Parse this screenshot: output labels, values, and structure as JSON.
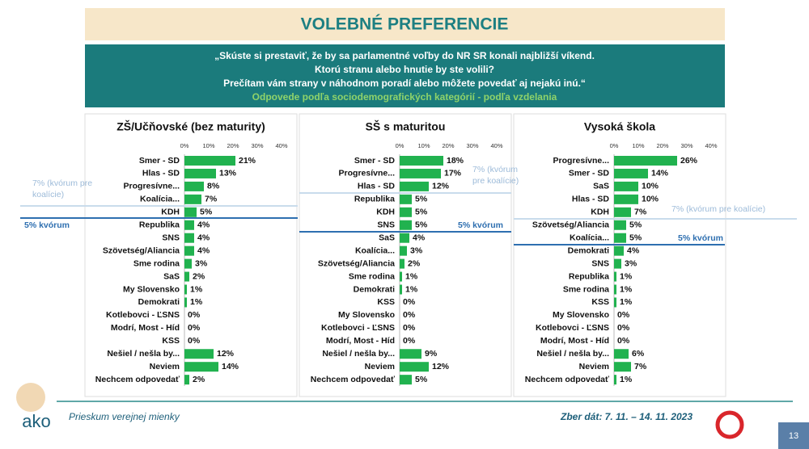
{
  "title": "VOLEBNÉ PREFERENCIE",
  "question": [
    "„Skúste si prestaviť, že by sa parlamentné voľby do NR SR konali najbližší víkend.",
    "Ktorú stranu alebo hnutie by ste volili?",
    "Prečítam vám strany v náhodnom poradí alebo môžete povedať aj nejakú inú.“"
  ],
  "subtitle": "Odpovede podľa sociodemografických kategórií - podľa vzdelania",
  "footer": {
    "left": "Prieskum verejnej mienky",
    "right": "Zber dát: 7. 11. – 14. 11. 2023",
    "page": "13",
    "logo": "ako"
  },
  "chart_data": [
    {
      "type": "bar",
      "title": "ZŠ/Učňovské (bez maturity)",
      "color": "#21b24f",
      "categories": [
        "Smer - SD",
        "Hlas - SD",
        "Progresívne...",
        "Koalícia...",
        "KDH",
        "Republika",
        "SNS",
        "Szövetség/Aliancia",
        "Sme rodina",
        "SaS",
        "My Slovensko",
        "Demokrati",
        "Kotlebovci - ĽSNS",
        "Modrí, Most - Híd",
        "KSS",
        "Nešiel / nešla by...",
        "Neviem",
        "Nechcem odpovedať"
      ],
      "values": [
        21,
        13,
        8,
        7,
        5,
        4,
        4,
        4,
        3,
        2,
        1,
        1,
        0,
        0,
        0,
        12,
        14,
        2
      ],
      "value_labels": [
        "21%",
        "13%",
        "8%",
        "7%",
        "5%",
        "4%",
        "4%",
        "4%",
        "3%",
        "2%",
        "1%",
        "1%",
        "0%",
        "0%",
        "0%",
        "12%",
        "14%",
        "2%"
      ],
      "xlim": [
        0,
        40
      ],
      "xticks": [
        {
          "value": 0,
          "label": "0%"
        },
        {
          "value": 10,
          "label": "10%"
        },
        {
          "value": 20,
          "label": "20%"
        },
        {
          "value": 30,
          "label": "30%"
        },
        {
          "value": 40,
          "label": "40%"
        }
      ],
      "annotations": [
        "7% (kvórum pre koalície)",
        "5% kvórum"
      ]
    },
    {
      "type": "bar",
      "title": "SŠ s maturitou",
      "color": "#21b24f",
      "categories": [
        "Smer - SD",
        "Progresívne...",
        "Hlas - SD",
        "Republika",
        "KDH",
        "SNS",
        "SaS",
        "Koalícia...",
        "Szövetség/Aliancia",
        "Sme rodina",
        "Demokrati",
        "KSS",
        "My Slovensko",
        "Kotlebovci - ĽSNS",
        "Modrí, Most - Híd",
        "Nešiel / nešla by...",
        "Neviem",
        "Nechcem odpovedať"
      ],
      "values": [
        18,
        17,
        12,
        5,
        5,
        5,
        4,
        3,
        2,
        1,
        1,
        0,
        0,
        0,
        0,
        9,
        12,
        5
      ],
      "value_labels": [
        "18%",
        "17%",
        "12%",
        "5%",
        "5%",
        "5%",
        "4%",
        "3%",
        "2%",
        "1%",
        "1%",
        "0%",
        "0%",
        "0%",
        "0%",
        "9%",
        "12%",
        "5%"
      ],
      "xlim": [
        0,
        40
      ],
      "xticks": [
        {
          "value": 0,
          "label": "0%"
        },
        {
          "value": 10,
          "label": "10%"
        },
        {
          "value": 20,
          "label": "20%"
        },
        {
          "value": 30,
          "label": "30%"
        },
        {
          "value": 40,
          "label": "40%"
        }
      ],
      "annotations": [
        "7% (kvórum pre koalície)",
        "5% kvórum"
      ]
    },
    {
      "type": "bar",
      "title": "Vysoká škola",
      "color": "#21b24f",
      "categories": [
        "Progresívne...",
        "Smer - SD",
        "SaS",
        "Hlas - SD",
        "KDH",
        "Szövetség/Aliancia",
        "Koalícia...",
        "Demokrati",
        "SNS",
        "Republika",
        "Sme rodina",
        "KSS",
        "My Slovensko",
        "Kotlebovci - ĽSNS",
        "Modrí, Most - Híd",
        "Nešiel / nešla by...",
        "Neviem",
        "Nechcem odpovedať"
      ],
      "values": [
        26,
        14,
        10,
        10,
        7,
        5,
        5,
        4,
        3,
        1,
        1,
        1,
        0,
        0,
        0,
        6,
        7,
        1
      ],
      "value_labels": [
        "26%",
        "14%",
        "10%",
        "10%",
        "7%",
        "5%",
        "5%",
        "4%",
        "3%",
        "1%",
        "1%",
        "1%",
        "0%",
        "0%",
        "0%",
        "6%",
        "7%",
        "1%"
      ],
      "xlim": [
        0,
        40
      ],
      "xticks": [
        {
          "value": 0,
          "label": "0%"
        },
        {
          "value": 10,
          "label": "10%"
        },
        {
          "value": 20,
          "label": "20%"
        },
        {
          "value": 30,
          "label": "30%"
        },
        {
          "value": 40,
          "label": "40%"
        }
      ],
      "annotations": [
        "7% (kvórum pre koalície)",
        "5% kvórum"
      ]
    }
  ]
}
